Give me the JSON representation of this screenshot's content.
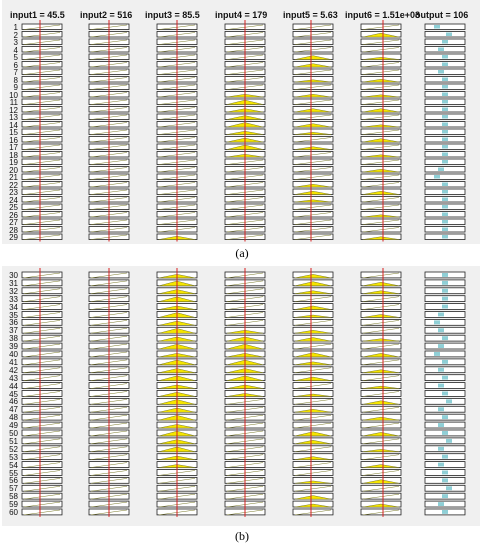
{
  "panel_a": {
    "caption": "(a)",
    "headers": [
      "input1 = 45.5",
      "input2 = 516",
      "input3 = 85.5",
      "input4 = 179",
      "input5 = 5.63",
      "input6 = 1.51e+03",
      "output = 106"
    ],
    "row_labels": [
      "1",
      "2",
      "3",
      "4",
      "5",
      "6",
      "7",
      "8",
      "9",
      "10",
      "11",
      "12",
      "13",
      "14",
      "15",
      "16",
      "17",
      "18",
      "19",
      "20",
      "21",
      "22",
      "23",
      "24",
      "25",
      "26",
      "27",
      "28",
      "29"
    ],
    "fills": {
      "input1": [],
      "input2": [],
      "input3": [
        {
          "row": 29,
          "level": 0.6
        }
      ],
      "input4": [
        {
          "row": 10,
          "level": 0.5
        },
        {
          "row": 11,
          "level": 0.8
        },
        {
          "row": 12,
          "level": 0.6
        },
        {
          "row": 13,
          "level": 0.7
        },
        {
          "row": 14,
          "level": 0.8
        },
        {
          "row": 15,
          "level": 0.6
        },
        {
          "row": 16,
          "level": 0.7
        },
        {
          "row": 17,
          "level": 0.8
        },
        {
          "row": 18,
          "level": 0.5
        }
      ],
      "input5": [
        {
          "row": 5,
          "level": 0.7
        },
        {
          "row": 6,
          "level": 0.6
        },
        {
          "row": 8,
          "level": 0.4
        },
        {
          "row": 10,
          "level": 0.5
        },
        {
          "row": 12,
          "level": 0.6
        },
        {
          "row": 14,
          "level": 0.6
        },
        {
          "row": 15,
          "level": 0.4
        },
        {
          "row": 17,
          "level": 0.5
        },
        {
          "row": 22,
          "level": 0.5
        },
        {
          "row": 23,
          "level": 0.6
        },
        {
          "row": 24,
          "level": 0.4
        }
      ],
      "input6": [
        {
          "row": 2,
          "level": 0.7
        },
        {
          "row": 5,
          "level": 0.4
        },
        {
          "row": 8,
          "level": 0.5
        },
        {
          "row": 10,
          "level": 0.4
        },
        {
          "row": 12,
          "level": 0.6
        },
        {
          "row": 14,
          "level": 0.4
        },
        {
          "row": 16,
          "level": 0.6
        },
        {
          "row": 18,
          "level": 0.4
        },
        {
          "row": 20,
          "level": 0.5
        },
        {
          "row": 23,
          "level": 0.6
        },
        {
          "row": 26,
          "level": 0.4
        },
        {
          "row": 29,
          "level": 0.5
        }
      ]
    },
    "output_positions": [
      0.3,
      0.6,
      0.5,
      0.4,
      0.5,
      0.5,
      0.4,
      0.5,
      0.5,
      0.5,
      0.5,
      0.5,
      0.5,
      0.5,
      0.5,
      0.5,
      0.5,
      0.5,
      0.5,
      0.4,
      0.3,
      0.5,
      0.5,
      0.5,
      0.5,
      0.5,
      0.5,
      0.5,
      0.5
    ]
  },
  "panel_b": {
    "caption": "(b)",
    "row_labels": [
      "30",
      "31",
      "32",
      "33",
      "34",
      "35",
      "36",
      "37",
      "38",
      "39",
      "40",
      "41",
      "42",
      "43",
      "44",
      "45",
      "46",
      "47",
      "48",
      "49",
      "50",
      "51",
      "52",
      "53",
      "54",
      "55",
      "56",
      "57",
      "58",
      "59",
      "60"
    ],
    "fills": {
      "input1": [],
      "input2": [],
      "input3": [
        {
          "row": 30,
          "level": 0.6
        },
        {
          "row": 31,
          "level": 0.8
        },
        {
          "row": 32,
          "level": 0.7
        },
        {
          "row": 33,
          "level": 0.8
        },
        {
          "row": 34,
          "level": 0.6
        },
        {
          "row": 35,
          "level": 0.8
        },
        {
          "row": 36,
          "level": 0.7
        },
        {
          "row": 37,
          "level": 0.8
        },
        {
          "row": 38,
          "level": 0.7
        },
        {
          "row": 39,
          "level": 0.8
        },
        {
          "row": 40,
          "level": 0.6
        },
        {
          "row": 41,
          "level": 0.8
        },
        {
          "row": 42,
          "level": 0.7
        },
        {
          "row": 43,
          "level": 0.8
        },
        {
          "row": 44,
          "level": 0.6
        },
        {
          "row": 45,
          "level": 0.7
        },
        {
          "row": 46,
          "level": 0.8
        },
        {
          "row": 47,
          "level": 0.7
        },
        {
          "row": 48,
          "level": 0.8
        },
        {
          "row": 49,
          "level": 0.6
        },
        {
          "row": 50,
          "level": 0.8
        },
        {
          "row": 51,
          "level": 0.7
        },
        {
          "row": 52,
          "level": 0.8
        },
        {
          "row": 53,
          "level": 0.6
        },
        {
          "row": 54,
          "level": 0.5
        }
      ],
      "input4": [
        {
          "row": 37,
          "level": 0.5
        },
        {
          "row": 38,
          "level": 0.7
        },
        {
          "row": 39,
          "level": 0.8
        },
        {
          "row": 40,
          "level": 0.6
        },
        {
          "row": 41,
          "level": 0.8
        },
        {
          "row": 42,
          "level": 0.7
        },
        {
          "row": 43,
          "level": 0.8
        },
        {
          "row": 44,
          "level": 0.6
        },
        {
          "row": 45,
          "level": 0.5
        }
      ],
      "input5": [
        {
          "row": 30,
          "level": 0.6
        },
        {
          "row": 31,
          "level": 0.7
        },
        {
          "row": 32,
          "level": 0.5
        },
        {
          "row": 34,
          "level": 0.6
        },
        {
          "row": 35,
          "level": 0.4
        },
        {
          "row": 37,
          "level": 0.5
        },
        {
          "row": 38,
          "level": 0.6
        },
        {
          "row": 40,
          "level": 0.7
        },
        {
          "row": 41,
          "level": 0.5
        },
        {
          "row": 43,
          "level": 0.6
        },
        {
          "row": 45,
          "level": 0.4
        },
        {
          "row": 47,
          "level": 0.5
        },
        {
          "row": 50,
          "level": 0.7
        },
        {
          "row": 51,
          "level": 0.6
        },
        {
          "row": 53,
          "level": 0.5
        },
        {
          "row": 56,
          "level": 0.4
        },
        {
          "row": 58,
          "level": 0.6
        },
        {
          "row": 59,
          "level": 0.5
        }
      ],
      "input6": [
        {
          "row": 31,
          "level": 0.6
        },
        {
          "row": 32,
          "level": 0.5
        },
        {
          "row": 35,
          "level": 0.5
        },
        {
          "row": 38,
          "level": 0.4
        },
        {
          "row": 40,
          "level": 0.6
        },
        {
          "row": 42,
          "level": 0.5
        },
        {
          "row": 44,
          "level": 0.4
        },
        {
          "row": 46,
          "level": 0.6
        },
        {
          "row": 48,
          "level": 0.5
        },
        {
          "row": 50,
          "level": 0.6
        },
        {
          "row": 52,
          "level": 0.4
        },
        {
          "row": 54,
          "level": 0.5
        },
        {
          "row": 56,
          "level": 0.6
        },
        {
          "row": 59,
          "level": 0.5
        }
      ]
    },
    "output_positions": [
      0.5,
      0.5,
      0.5,
      0.5,
      0.5,
      0.4,
      0.3,
      0.4,
      0.5,
      0.4,
      0.3,
      0.5,
      0.4,
      0.5,
      0.4,
      0.5,
      0.6,
      0.4,
      0.5,
      0.4,
      0.5,
      0.6,
      0.4,
      0.5,
      0.4,
      0.5,
      0.5,
      0.6,
      0.5,
      0.4,
      0.5
    ]
  },
  "colors": {
    "panel_bg": "#f0f0f0",
    "box_stroke": "#222222",
    "box_fill": "#ffffff",
    "red_line": "#d62020",
    "yellow_fill": "#f5e500",
    "diag_line": "#7a7a2a",
    "output_dot": "#8fcfd6"
  }
}
